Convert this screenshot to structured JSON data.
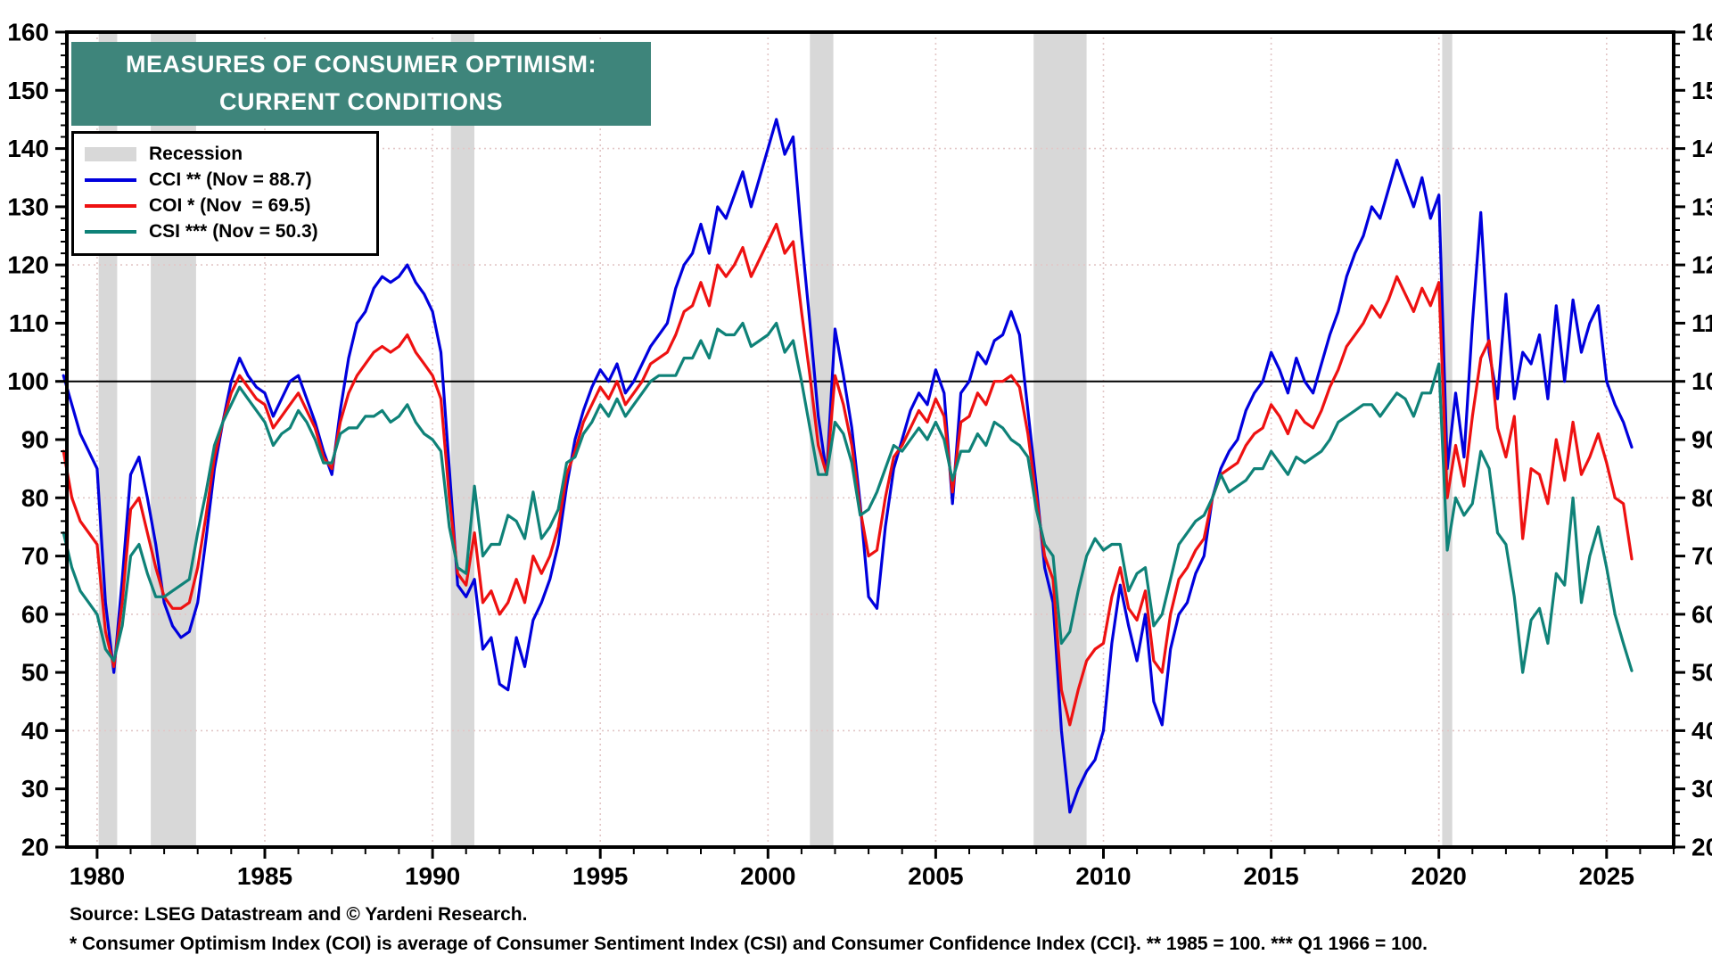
{
  "title": {
    "line1": "MEASURES OF CONSUMER OPTIMISM:",
    "line2": "CURRENT CONDITIONS"
  },
  "legend": {
    "recession_label": "Recession",
    "cci_label": "CCI ** (Nov = 88.7)",
    "coi_label": "COI * (Nov  = 69.5)",
    "csi_label": "CSI *** (Nov = 50.3)"
  },
  "footer": {
    "source": "Source: LSEG Datastream and © Yardeni Research.",
    "footnote": "* Consumer Optimism Index (COI) is average of Consumer Sentiment Index (CSI) and Consumer Confidence Index (CCI}. ** 1985 = 100.  *** Q1 1966 = 100."
  },
  "colors": {
    "title_box": "#3e857b",
    "cci": "#0000dd",
    "coi": "#ee1111",
    "csi": "#0f8278",
    "recession_band": "#d8d8d8",
    "gridline": "#e2c6c6",
    "reference_line": "#000000",
    "frame": "#000000"
  },
  "chart_data": {
    "type": "line",
    "title": "Measures of Consumer Optimism: Current Conditions",
    "x_start": 1979.0,
    "x_step": 0.25,
    "x_range": [
      1979.1,
      2027.0
    ],
    "y_range": [
      20,
      160
    ],
    "x_ticks_major": [
      1980,
      1985,
      1990,
      1995,
      2000,
      2005,
      2010,
      2015,
      2020,
      2025
    ],
    "x_minor_step": 1,
    "y_ticks_major": [
      20,
      30,
      40,
      50,
      60,
      70,
      80,
      90,
      100,
      110,
      120,
      130,
      140,
      150,
      160
    ],
    "y_minor_step": 2,
    "y_gridlines": [
      40,
      60,
      80,
      120,
      140
    ],
    "reference_line_y": 100,
    "grid": "dotted",
    "legend_position": "top-left",
    "recessions": [
      [
        1980.05,
        1980.6
      ],
      [
        1981.6,
        1982.95
      ],
      [
        1990.55,
        1991.25
      ],
      [
        2001.25,
        2001.95
      ],
      [
        2007.92,
        2009.5
      ],
      [
        2020.1,
        2020.4
      ]
    ],
    "series": [
      {
        "name": "CCI",
        "label": "CCI ** (Nov = 88.7)",
        "note": "1985 = 100",
        "last_point": {
          "period": "Nov 2025",
          "value": 88.7
        },
        "color_key": "cci",
        "values": [
          101,
          96,
          91,
          88,
          85,
          62,
          50,
          66,
          84,
          87,
          80,
          72,
          62,
          58,
          56,
          57,
          62,
          73,
          85,
          93,
          100,
          104,
          101,
          99,
          98,
          94,
          97,
          100,
          101,
          97,
          93,
          88,
          84,
          95,
          104,
          110,
          112,
          116,
          118,
          117,
          118,
          120,
          117,
          115,
          112,
          105,
          85,
          65,
          63,
          66,
          54,
          56,
          48,
          47,
          56,
          51,
          59,
          62,
          66,
          72,
          82,
          90,
          95,
          99,
          102,
          100,
          103,
          98,
          100,
          103,
          106,
          108,
          110,
          116,
          120,
          122,
          127,
          122,
          130,
          128,
          132,
          136,
          130,
          135,
          140,
          145,
          139,
          142,
          125,
          110,
          94,
          84,
          109,
          101,
          92,
          79,
          63,
          61,
          75,
          85,
          90,
          95,
          98,
          96,
          102,
          98,
          79,
          98,
          100,
          105,
          103,
          107,
          108,
          112,
          108,
          95,
          82,
          68,
          62,
          40,
          26,
          30,
          33,
          35,
          40,
          55,
          65,
          58,
          52,
          60,
          45,
          41,
          54,
          60,
          62,
          67,
          70,
          80,
          85,
          88,
          90,
          95,
          98,
          100,
          105,
          102,
          98,
          104,
          100,
          98,
          103,
          108,
          112,
          118,
          122,
          125,
          130,
          128,
          133,
          138,
          134,
          130,
          135,
          128,
          132,
          85,
          98,
          87,
          110,
          129,
          105,
          97,
          115,
          97,
          105,
          103,
          108,
          97,
          113,
          100,
          114,
          105,
          110,
          113,
          100,
          96,
          93,
          88.7
        ]
      },
      {
        "name": "COI",
        "label": "COI * (Nov  = 69.5)",
        "note": "average of CSI and CCI",
        "last_point": {
          "period": "Nov 2025",
          "value": 69.5
        },
        "color_key": "coi",
        "values": [
          88,
          80,
          76,
          74,
          72,
          57,
          51,
          62,
          78,
          80,
          74,
          68,
          63,
          61,
          61,
          62,
          68,
          77,
          87,
          93,
          98,
          101,
          99,
          97,
          96,
          92,
          94,
          96,
          98,
          95,
          92,
          87,
          85,
          93,
          98,
          101,
          103,
          105,
          106,
          105,
          106,
          108,
          105,
          103,
          101,
          97,
          80,
          67,
          65,
          74,
          62,
          64,
          60,
          62,
          66,
          62,
          70,
          67,
          70,
          75,
          84,
          88,
          93,
          96,
          99,
          97,
          100,
          96,
          98,
          100,
          103,
          104,
          105,
          108,
          112,
          113,
          117,
          113,
          120,
          118,
          120,
          123,
          118,
          121,
          124,
          127,
          122,
          124,
          112,
          101,
          89,
          84,
          101,
          96,
          89,
          78,
          70,
          71,
          80,
          87,
          89,
          92,
          95,
          93,
          97,
          94,
          81,
          93,
          94,
          98,
          96,
          100,
          100,
          101,
          99,
          91,
          80,
          70,
          66,
          47,
          41,
          47,
          52,
          54,
          55,
          63,
          68,
          61,
          59,
          64,
          52,
          50,
          60,
          66,
          68,
          71,
          73,
          80,
          84,
          85,
          86,
          89,
          91,
          92,
          96,
          94,
          91,
          95,
          93,
          92,
          95,
          99,
          102,
          106,
          108,
          110,
          113,
          111,
          114,
          118,
          115,
          112,
          116,
          113,
          117,
          80,
          89,
          82,
          94,
          104,
          107,
          92,
          87,
          94,
          73,
          85,
          84,
          79,
          90,
          83,
          93,
          84,
          87,
          91,
          86,
          80,
          79,
          69.5
        ]
      },
      {
        "name": "CSI",
        "label": "CSI *** (Nov = 50.3)",
        "note": "Q1 1966 = 100",
        "last_point": {
          "period": "Nov 2025",
          "value": 50.3
        },
        "color_key": "csi",
        "values": [
          74,
          68,
          64,
          62,
          60,
          54,
          52,
          58,
          70,
          72,
          67,
          63,
          63,
          64,
          65,
          66,
          74,
          81,
          89,
          93,
          96,
          99,
          97,
          95,
          93,
          89,
          91,
          92,
          95,
          93,
          90,
          86,
          86,
          91,
          92,
          92,
          94,
          94,
          95,
          93,
          94,
          96,
          93,
          91,
          90,
          88,
          75,
          68,
          67,
          82,
          70,
          72,
          72,
          77,
          76,
          73,
          81,
          73,
          75,
          78,
          86,
          87,
          91,
          93,
          96,
          94,
          97,
          94,
          96,
          98,
          100,
          101,
          101,
          101,
          104,
          104,
          107,
          104,
          109,
          108,
          108,
          110,
          106,
          107,
          108,
          110,
          105,
          107,
          100,
          92,
          84,
          84,
          93,
          91,
          86,
          77,
          78,
          81,
          85,
          89,
          88,
          90,
          92,
          90,
          93,
          90,
          83,
          88,
          88,
          91,
          89,
          93,
          92,
          90,
          89,
          87,
          78,
          72,
          70,
          55,
          57,
          64,
          70,
          73,
          71,
          72,
          72,
          64,
          67,
          68,
          58,
          60,
          66,
          72,
          74,
          76,
          77,
          80,
          84,
          81,
          82,
          83,
          85,
          85,
          88,
          86,
          84,
          87,
          86,
          87,
          88,
          90,
          93,
          94,
          95,
          96,
          96,
          94,
          96,
          98,
          97,
          94,
          98,
          98,
          103,
          71,
          80,
          77,
          79,
          88,
          85,
          74,
          72,
          63,
          50,
          59,
          61,
          55,
          67,
          65,
          80,
          62,
          70,
          75,
          68,
          60,
          55,
          50.3
        ]
      }
    ]
  }
}
